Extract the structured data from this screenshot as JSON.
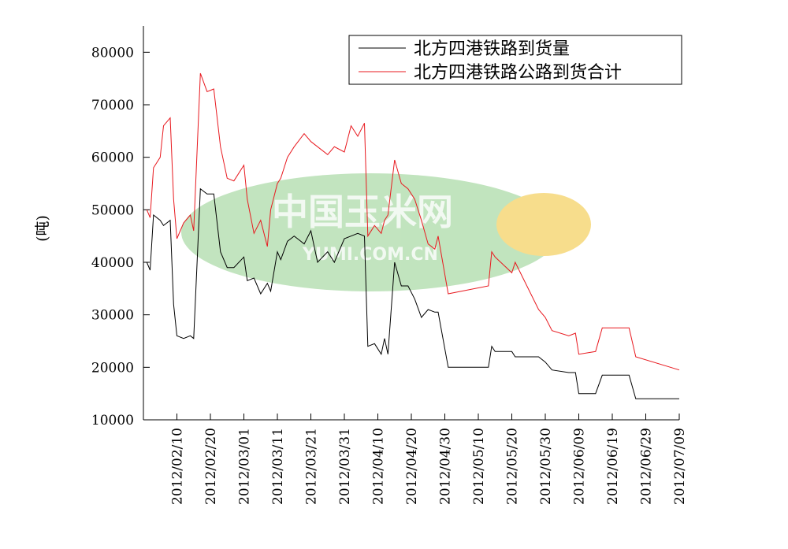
{
  "chart_data": {
    "type": "line",
    "y_label": "(吨)",
    "watermark": [
      "中国玉米网",
      "YUMI.COM.CN"
    ],
    "x": [
      "2012/02/01",
      "2012/02/02",
      "2012/02/03",
      "2012/02/05",
      "2012/02/06",
      "2012/02/08",
      "2012/02/09",
      "2012/02/10",
      "2012/02/12",
      "2012/02/14",
      "2012/02/15",
      "2012/02/17",
      "2012/02/19",
      "2012/02/21",
      "2012/02/23",
      "2012/02/25",
      "2012/02/27",
      "2012/03/01",
      "2012/03/02",
      "2012/03/04",
      "2012/03/06",
      "2012/03/08",
      "2012/03/09",
      "2012/03/11",
      "2012/03/12",
      "2012/03/14",
      "2012/03/16",
      "2012/03/19",
      "2012/03/21",
      "2012/03/23",
      "2012/03/26",
      "2012/03/28",
      "2012/03/31",
      "2012/04/02",
      "2012/04/04",
      "2012/04/06",
      "2012/04/07",
      "2012/04/09",
      "2012/04/11",
      "2012/04/12",
      "2012/04/13",
      "2012/04/15",
      "2012/04/17",
      "2012/04/19",
      "2012/04/21",
      "2012/04/23",
      "2012/04/25",
      "2012/04/27",
      "2012/04/28",
      "2012/05/01",
      "2012/05/13",
      "2012/05/14",
      "2012/05/15",
      "2012/05/20",
      "2012/05/21",
      "2012/05/28",
      "2012/05/30",
      "2012/06/01",
      "2012/06/06",
      "2012/06/08",
      "2012/06/09",
      "2012/06/14",
      "2012/06/16",
      "2012/06/24",
      "2012/06/26",
      "2012/07/09"
    ],
    "series": [
      {
        "name": "北方四港铁路到货量",
        "color": "#000000",
        "values": [
          40000,
          38500,
          49000,
          48000,
          47000,
          48000,
          32000,
          26000,
          25500,
          26000,
          25500,
          54000,
          53000,
          53000,
          42000,
          39000,
          39000,
          41000,
          36500,
          37000,
          34000,
          36000,
          34500,
          42000,
          40500,
          44000,
          45000,
          43500,
          46000,
          40000,
          42000,
          40000,
          44500,
          45000,
          45500,
          45000,
          24000,
          24500,
          22500,
          25500,
          22500,
          40000,
          35500,
          35500,
          33000,
          29500,
          31000,
          30500,
          30500,
          20000,
          20000,
          24000,
          23000,
          23000,
          22000,
          22000,
          21000,
          19500,
          19000,
          19000,
          15000,
          15000,
          18500,
          18500,
          14000,
          14000
        ]
      },
      {
        "name": "北方四港铁路公路到货合计",
        "color": "#e8191f",
        "values": [
          50000,
          48500,
          58000,
          60000,
          66000,
          67500,
          52000,
          44500,
          47500,
          49000,
          46000,
          76000,
          72500,
          73000,
          62000,
          56000,
          55500,
          58500,
          52000,
          45500,
          48000,
          43000,
          50000,
          55000,
          56000,
          60000,
          62000,
          64500,
          63000,
          62000,
          60500,
          62000,
          61000,
          66000,
          64000,
          66500,
          45000,
          47000,
          45500,
          48000,
          49000,
          59500,
          55000,
          54000,
          52000,
          48000,
          43500,
          42500,
          45000,
          34000,
          35500,
          42000,
          41000,
          38000,
          40000,
          31000,
          29500,
          27000,
          26000,
          26500,
          22500,
          23000,
          27500,
          27500,
          22000,
          19500
        ]
      }
    ],
    "xlim": [
      "2012/01/31",
      "2012/07/09"
    ],
    "xticks": [
      "2012/02/10",
      "2012/02/20",
      "2012/03/01",
      "2012/03/11",
      "2012/03/21",
      "2012/03/31",
      "2012/04/10",
      "2012/04/20",
      "2012/04/30",
      "2012/05/10",
      "2012/05/20",
      "2012/05/30",
      "2012/06/09",
      "2012/06/19",
      "2012/06/29",
      "2012/07/09"
    ],
    "ylim": [
      10000,
      85000
    ],
    "yticks": [
      10000,
      20000,
      30000,
      40000,
      50000,
      60000,
      70000,
      80000
    ],
    "legend": "top-right"
  }
}
